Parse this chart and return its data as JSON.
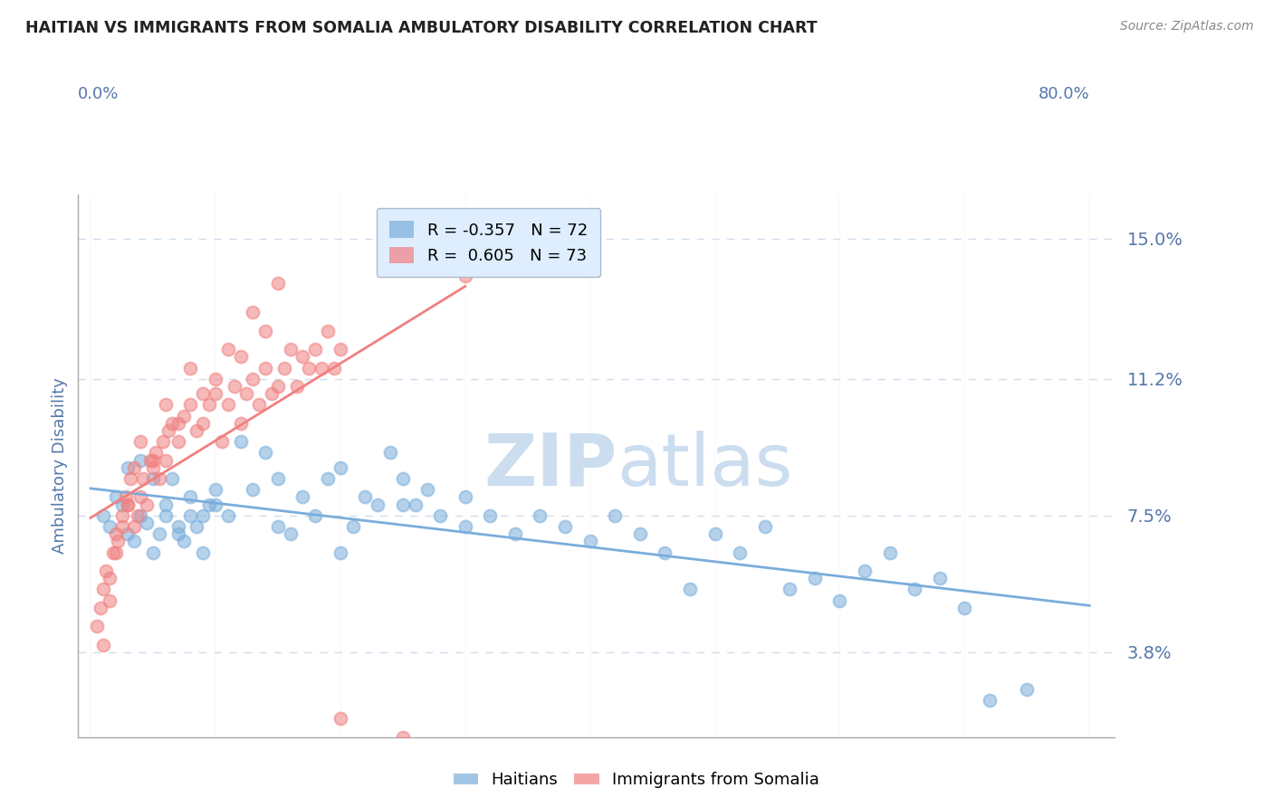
{
  "title": "HAITIAN VS IMMIGRANTS FROM SOMALIA AMBULATORY DISABILITY CORRELATION CHART",
  "source": "Source: ZipAtlas.com",
  "ylabel": "Ambulatory Disability",
  "y_ticks": [
    3.8,
    7.5,
    11.2,
    15.0
  ],
  "xlim": [
    0,
    80
  ],
  "ylim": [
    1.5,
    16.0
  ],
  "haitian_color": "#7aaddb",
  "somalia_color": "#f08080",
  "haitian_R": -0.357,
  "haitian_N": 72,
  "somalia_R": 0.605,
  "somalia_N": 73,
  "watermark_zip": "ZIP",
  "watermark_atlas": "atlas",
  "watermark_color": "#ccddf0",
  "title_color": "#222222",
  "axis_label_color": "#5577aa",
  "tick_color": "#5577aa",
  "grid_color": "#ccddee",
  "legend_bg_color": "#deeeff",
  "legend_edge_color": "#aabbcc",
  "haitian_scatter_x": [
    1.0,
    1.5,
    2.0,
    2.5,
    3.0,
    3.5,
    4.0,
    4.5,
    5.0,
    5.5,
    6.0,
    6.5,
    7.0,
    7.5,
    8.0,
    8.5,
    9.0,
    9.5,
    10.0,
    11.0,
    12.0,
    13.0,
    14.0,
    15.0,
    16.0,
    17.0,
    18.0,
    19.0,
    20.0,
    21.0,
    22.0,
    23.0,
    24.0,
    25.0,
    26.0,
    27.0,
    28.0,
    30.0,
    32.0,
    34.0,
    36.0,
    38.0,
    40.0,
    42.0,
    44.0,
    46.0,
    48.0,
    50.0,
    52.0,
    54.0,
    56.0,
    58.0,
    60.0,
    62.0,
    64.0,
    66.0,
    68.0,
    70.0,
    72.0,
    75.0,
    3.0,
    4.0,
    5.0,
    6.0,
    7.0,
    8.0,
    9.0,
    10.0,
    15.0,
    20.0,
    25.0,
    30.0
  ],
  "haitian_scatter_y": [
    7.5,
    7.2,
    8.0,
    7.8,
    7.0,
    6.8,
    7.5,
    7.3,
    6.5,
    7.0,
    7.8,
    8.5,
    7.0,
    6.8,
    7.5,
    7.2,
    6.5,
    7.8,
    8.2,
    7.5,
    9.5,
    8.2,
    9.2,
    8.5,
    7.0,
    8.0,
    7.5,
    8.5,
    8.8,
    7.2,
    8.0,
    7.8,
    9.2,
    8.5,
    7.8,
    8.2,
    7.5,
    7.2,
    7.5,
    7.0,
    7.5,
    7.2,
    6.8,
    7.5,
    7.0,
    6.5,
    5.5,
    7.0,
    6.5,
    7.2,
    5.5,
    5.8,
    5.2,
    6.0,
    6.5,
    5.5,
    5.8,
    5.0,
    2.5,
    2.8,
    8.8,
    9.0,
    8.5,
    7.5,
    7.2,
    8.0,
    7.5,
    7.8,
    7.2,
    6.5,
    7.8,
    8.0
  ],
  "somalia_scatter_x": [
    0.5,
    0.8,
    1.0,
    1.2,
    1.5,
    1.8,
    2.0,
    2.2,
    2.5,
    2.8,
    3.0,
    3.2,
    3.5,
    3.8,
    4.0,
    4.2,
    4.5,
    4.8,
    5.0,
    5.2,
    5.5,
    5.8,
    6.0,
    6.2,
    6.5,
    7.0,
    7.5,
    8.0,
    8.5,
    9.0,
    9.5,
    10.0,
    10.5,
    11.0,
    11.5,
    12.0,
    12.5,
    13.0,
    13.5,
    14.0,
    14.5,
    15.0,
    15.5,
    16.0,
    16.5,
    17.0,
    17.5,
    18.0,
    18.5,
    19.0,
    19.5,
    20.0,
    1.0,
    1.5,
    2.0,
    2.5,
    3.0,
    3.5,
    4.0,
    5.0,
    6.0,
    7.0,
    8.0,
    9.0,
    10.0,
    11.0,
    12.0,
    13.0,
    14.0,
    15.0,
    20.0,
    25.0,
    30.0
  ],
  "somalia_scatter_y": [
    4.5,
    5.0,
    5.5,
    6.0,
    5.8,
    6.5,
    7.0,
    6.8,
    7.5,
    8.0,
    7.8,
    8.5,
    7.2,
    7.5,
    8.0,
    8.5,
    7.8,
    9.0,
    8.8,
    9.2,
    8.5,
    9.5,
    9.0,
    9.8,
    10.0,
    9.5,
    10.2,
    10.5,
    9.8,
    10.0,
    10.5,
    10.8,
    9.5,
    10.5,
    11.0,
    10.0,
    10.8,
    11.2,
    10.5,
    11.5,
    10.8,
    11.0,
    11.5,
    12.0,
    11.0,
    11.8,
    11.5,
    12.0,
    11.5,
    12.5,
    11.5,
    12.0,
    4.0,
    5.2,
    6.5,
    7.2,
    7.8,
    8.8,
    9.5,
    9.0,
    10.5,
    10.0,
    11.5,
    10.8,
    11.2,
    12.0,
    11.8,
    13.0,
    12.5,
    13.8,
    2.0,
    1.5,
    14.0
  ]
}
